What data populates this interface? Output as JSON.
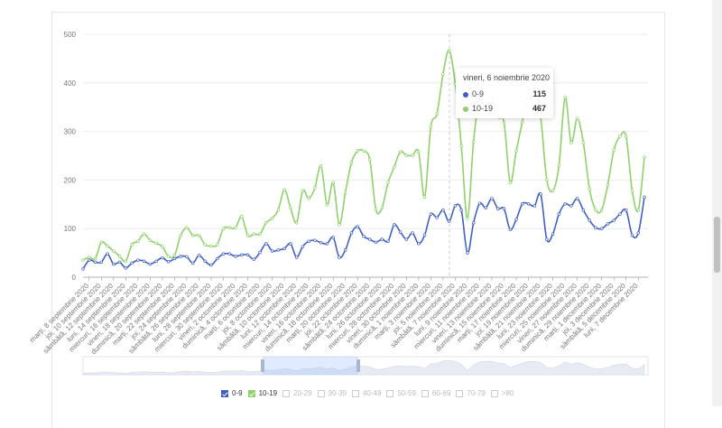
{
  "chart_data": {
    "type": "line",
    "title": "",
    "xlabel": "",
    "ylabel": "",
    "ylim": [
      0,
      500
    ],
    "yticks": [
      "0",
      "100",
      "200",
      "300",
      "400",
      "500"
    ],
    "grid": true,
    "legend_placement": "bottom",
    "x": [
      "2020-09-07",
      "2020-09-08",
      "2020-09-09",
      "2020-09-10",
      "2020-09-11",
      "2020-09-12",
      "2020-09-13",
      "2020-09-14",
      "2020-09-15",
      "2020-09-16",
      "2020-09-17",
      "2020-09-18",
      "2020-09-19",
      "2020-09-20",
      "2020-09-21",
      "2020-09-22",
      "2020-09-23",
      "2020-09-24",
      "2020-09-25",
      "2020-09-26",
      "2020-09-27",
      "2020-09-28",
      "2020-09-29",
      "2020-09-30",
      "2020-10-01",
      "2020-10-02",
      "2020-10-03",
      "2020-10-04",
      "2020-10-05",
      "2020-10-06",
      "2020-10-07",
      "2020-10-08",
      "2020-10-09",
      "2020-10-10",
      "2020-10-11",
      "2020-10-12",
      "2020-10-13",
      "2020-10-14",
      "2020-10-15",
      "2020-10-16",
      "2020-10-17",
      "2020-10-18",
      "2020-10-19",
      "2020-10-20",
      "2020-10-21",
      "2020-10-22",
      "2020-10-23",
      "2020-10-24",
      "2020-10-25",
      "2020-10-26",
      "2020-10-27",
      "2020-10-28",
      "2020-10-29",
      "2020-10-30",
      "2020-10-31",
      "2020-11-01",
      "2020-11-02",
      "2020-11-03",
      "2020-11-04",
      "2020-11-05",
      "2020-11-06",
      "2020-11-07",
      "2020-11-08",
      "2020-11-09",
      "2020-11-10",
      "2020-11-11",
      "2020-11-12",
      "2020-11-13",
      "2020-11-14",
      "2020-11-15",
      "2020-11-16",
      "2020-11-17",
      "2020-11-18",
      "2020-11-19",
      "2020-11-20",
      "2020-11-21",
      "2020-11-22",
      "2020-11-23",
      "2020-11-24",
      "2020-11-25",
      "2020-11-26",
      "2020-11-27",
      "2020-11-28",
      "2020-11-29",
      "2020-11-30",
      "2020-12-01",
      "2020-12-02",
      "2020-12-03",
      "2020-12-04",
      "2020-12-05",
      "2020-12-06",
      "2020-12-07",
      "2020-12-08"
    ],
    "xtick_labels": [
      "marți, 8 septembrie 2020",
      "joi, 10 septembrie 2020",
      "sâmbătă, 12 septembrie 2020",
      "luni, 14 septembrie 2020",
      "miercuri, 16 septembrie 2020",
      "vineri, 18 septembrie 2020",
      "duminică, 20 septembrie 2020",
      "marți, 22 septembrie 2020",
      "joi, 24 septembrie 2020",
      "sâmbătă, 26 septembrie 2020",
      "luni, 28 septembrie 2020",
      "miercuri, 30 septembrie 2020",
      "vineri, 2 octombrie 2020",
      "duminică, 4 octombrie 2020",
      "marți, 6 octombrie 2020",
      "joi, 8 octombrie 2020",
      "sâmbătă, 10 octombrie 2020",
      "luni, 12 octombrie 2020",
      "miercuri, 14 octombrie 2020",
      "vineri, 16 octombrie 2020",
      "duminică, 18 octombrie 2020",
      "marți, 20 octombrie 2020",
      "joi, 22 octombrie 2020",
      "sâmbătă, 24 octombrie 2020",
      "luni, 26 octombrie 2020",
      "miercuri, 28 octombrie 2020",
      "vineri, 30 octombrie 2020",
      "duminică, 1 noiembrie 2020",
      "marți, 3 noiembrie 2020",
      "joi, 5 noiembrie 2020",
      "sâmbătă, 7 noiembrie 2020",
      "luni, 9 noiembrie 2020",
      "miercuri, 11 noiembrie 2020",
      "vineri, 13 noiembrie 2020",
      "duminică, 15 noiembrie 2020",
      "marți, 17 noiembrie 2020",
      "joi, 19 noiembrie 2020",
      "sâmbătă, 21 noiembrie 2020",
      "luni, 23 noiembrie 2020",
      "miercuri, 25 noiembrie 2020",
      "vineri, 27 noiembrie 2020",
      "duminică, 29 noiembrie 2020",
      "marți, 1 decembrie 2020",
      "joi, 3 decembrie 2020",
      "sâmbătă, 5 decembrie 2020",
      "luni, 7 decembrie 2020"
    ],
    "series": [
      {
        "name": "0-9",
        "color": "#4060c8",
        "values": [
          17,
          35,
          31,
          31,
          48,
          27,
          31,
          19,
          29,
          35,
          33,
          27,
          33,
          40,
          32,
          38,
          43,
          42,
          29,
          45,
          33,
          25,
          38,
          48,
          48,
          43,
          46,
          46,
          37,
          51,
          69,
          54,
          56,
          59,
          69,
          41,
          63,
          74,
          76,
          71,
          69,
          82,
          41,
          56,
          91,
          104,
          84,
          78,
          72,
          78,
          74,
          108,
          93,
          78,
          91,
          69,
          87,
          130,
          123,
          138,
          115,
          147,
          138,
          50,
          112,
          152,
          143,
          162,
          141,
          141,
          98,
          119,
          151,
          151,
          147,
          171,
          78,
          89,
          130,
          151,
          147,
          162,
          138,
          117,
          102,
          100,
          110,
          117,
          130,
          138,
          87,
          91,
          165
        ]
      },
      {
        "name": "10-19",
        "color": "#8fd16a",
        "values": [
          35,
          41,
          38,
          72,
          64,
          54,
          43,
          33,
          67,
          74,
          89,
          76,
          70,
          63,
          43,
          45,
          86,
          102,
          86,
          86,
          67,
          64,
          67,
          100,
          102,
          102,
          125,
          86,
          89,
          89,
          112,
          121,
          139,
          180,
          143,
          112,
          178,
          162,
          184,
          229,
          149,
          195,
          108,
          175,
          236,
          260,
          260,
          242,
          139,
          143,
          195,
          227,
          258,
          251,
          251,
          258,
          165,
          310,
          336,
          418,
          467,
          398,
          270,
          121,
          279,
          370,
          395,
          380,
          330,
          318,
          195,
          260,
          320,
          380,
          390,
          330,
          201,
          178,
          230,
          370,
          277,
          327,
          277,
          182,
          139,
          138,
          190,
          262,
          290,
          290,
          178,
          138,
          247
        ]
      }
    ],
    "tooltip": {
      "title": "vineri, 6 noiembrie 2020",
      "rows": [
        {
          "label": "0-9",
          "value": "115",
          "color": "#4060c8"
        },
        {
          "label": "10-19",
          "value": "467",
          "color": "#8fd16a"
        }
      ]
    },
    "legend": [
      {
        "label": "0-9",
        "checked": true,
        "color": "#4060c8"
      },
      {
        "label": "10-19",
        "checked": true,
        "color": "#8fd16a"
      },
      {
        "label": "20-29",
        "checked": false
      },
      {
        "label": "30-39",
        "checked": false
      },
      {
        "label": "40-49",
        "checked": false
      },
      {
        "label": "50-59",
        "checked": false
      },
      {
        "label": "60-69",
        "checked": false
      },
      {
        "label": "70-79",
        "checked": false
      },
      {
        "label": ">80",
        "checked": false
      }
    ]
  }
}
